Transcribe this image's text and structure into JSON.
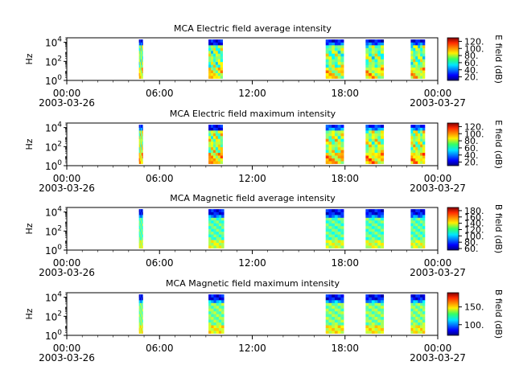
{
  "figure": {
    "panels": [
      {
        "title": "MCA  Electric field average intensity",
        "ylabel": "Hz",
        "colorbar_label": "E field (dB)",
        "colorbar_ticks": [
          "20.",
          "40.",
          "60.",
          "80.",
          "100.",
          "120."
        ]
      },
      {
        "title": "MCA  Electric field maximum intensity",
        "ylabel": "Hz",
        "colorbar_label": "E field (dB)",
        "colorbar_ticks": [
          "20.",
          "40.",
          "60.",
          "80.",
          "100.",
          "120."
        ]
      },
      {
        "title": "MCA  Magnetic field average intensity",
        "ylabel": "Hz",
        "colorbar_label": "B field (dB)",
        "colorbar_ticks": [
          "60.",
          "80.",
          "100.",
          "120.",
          "140.",
          "160.",
          "180."
        ]
      },
      {
        "title": "MCA  Magnetic field maximum intensity",
        "ylabel": "Hz",
        "colorbar_label": "B field (dB)",
        "colorbar_ticks": [
          "100.",
          "150."
        ]
      }
    ]
  },
  "chart_data": {
    "type": "heatmap",
    "x_axis": {
      "range": [
        "2003-03-26T00:00",
        "2003-03-27T00:00"
      ],
      "tick_labels": [
        "00:00\n2003-03-26",
        "06:00",
        "12:00",
        "18:00",
        "00:00\n2003-03-27"
      ]
    },
    "y_axis": {
      "scale": "log",
      "range": [
        1,
        30000
      ],
      "tick_labels": [
        "10^0",
        "10^2",
        "10^4"
      ]
    },
    "colormap": "jet",
    "data_intervals": {
      "E": [
        [
          "04:40",
          "04:55"
        ],
        [
          "09:10",
          "10:05"
        ],
        [
          "16:45",
          "17:55"
        ],
        [
          "19:20",
          "20:30"
        ],
        [
          "22:15",
          "23:10"
        ]
      ],
      "B": [
        [
          "04:40",
          "04:55"
        ],
        [
          "09:10",
          "10:10"
        ],
        [
          "16:45",
          "17:55"
        ],
        [
          "19:20",
          "20:30"
        ],
        [
          "22:15",
          "23:10"
        ]
      ]
    },
    "panels": [
      {
        "title": "MCA  Electric field average intensity",
        "quantity": "E field (dB)",
        "colorbar_range": [
          10,
          130
        ]
      },
      {
        "title": "MCA  Electric field maximum intensity",
        "quantity": "E field (dB)",
        "colorbar_range": [
          10,
          130
        ]
      },
      {
        "title": "MCA  Magnetic field average intensity",
        "quantity": "B field (dB)",
        "colorbar_range": [
          55,
          190
        ]
      },
      {
        "title": "MCA  Magnetic field maximum intensity",
        "quantity": "B field (dB)",
        "colorbar_range": [
          70,
          190
        ]
      }
    ]
  }
}
